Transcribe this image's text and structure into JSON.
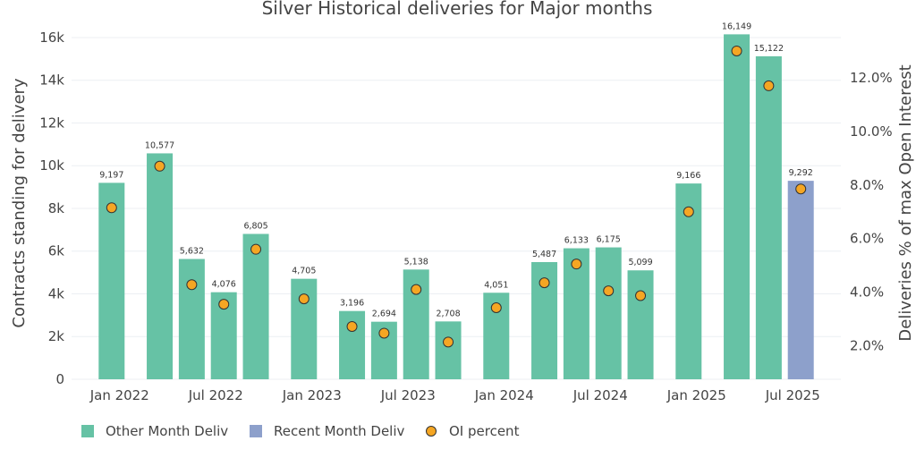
{
  "chart_data": {
    "type": "bar",
    "title": "Silver Historical deliveries for Major months",
    "ylabel": "Contracts standing for delivery",
    "y2label": "Deliveries % of max Open Interest",
    "ylim": [
      0,
      16500
    ],
    "y2lim": [
      0.75,
      13.9
    ],
    "yticks": [
      0,
      2000,
      4000,
      6000,
      8000,
      10000,
      12000,
      14000,
      16000
    ],
    "ytick_labels": [
      "0",
      "2k",
      "4k",
      "6k",
      "8k",
      "10k",
      "12k",
      "14k",
      "16k"
    ],
    "y2ticks": [
      2,
      4,
      6,
      8,
      10,
      12
    ],
    "y2tick_labels": [
      "2.0%",
      "4.0%",
      "6.0%",
      "8.0%",
      "10.0%",
      "12.0%"
    ],
    "xtick_labels": [
      {
        "label": "Jan 2022",
        "at": "2022-01"
      },
      {
        "label": "Jul 2022",
        "at": "2022-07"
      },
      {
        "label": "Jan 2023",
        "at": "2023-01"
      },
      {
        "label": "Jul 2023",
        "at": "2023-07"
      },
      {
        "label": "Jan 2024",
        "at": "2024-01"
      },
      {
        "label": "Jul 2024",
        "at": "2024-07"
      },
      {
        "label": "Jan 2025",
        "at": "2025-01"
      },
      {
        "label": "Jul 2025",
        "at": "2025-07"
      }
    ],
    "colors": {
      "other": "#66c2a5",
      "recent": "#8da0cb",
      "oi": "#f5a623",
      "oi_edge": "#333333"
    },
    "grid": true,
    "legend_position": "bottom",
    "bars": [
      {
        "month": "2021-12",
        "value": 9197,
        "label": "9,197",
        "oi": 7.15,
        "series": "Other Month Deliv"
      },
      {
        "month": "2022-03",
        "value": 10577,
        "label": "10,577",
        "oi": 8.7,
        "series": "Other Month Deliv"
      },
      {
        "month": "2022-05",
        "value": 5632,
        "label": "5,632",
        "oi": 4.28,
        "series": "Other Month Deliv"
      },
      {
        "month": "2022-07",
        "value": 4076,
        "label": "4,076",
        "oi": 3.55,
        "series": "Other Month Deliv"
      },
      {
        "month": "2022-09",
        "value": 6805,
        "label": "6,805",
        "oi": 5.6,
        "series": "Other Month Deliv"
      },
      {
        "month": "2022-12",
        "value": 4705,
        "label": "4,705",
        "oi": 3.75,
        "series": "Other Month Deliv"
      },
      {
        "month": "2023-03",
        "value": 3196,
        "label": "3,196",
        "oi": 2.72,
        "series": "Other Month Deliv"
      },
      {
        "month": "2023-05",
        "value": 2694,
        "label": "2,694",
        "oi": 2.47,
        "series": "Other Month Deliv"
      },
      {
        "month": "2023-07",
        "value": 5138,
        "label": "5,138",
        "oi": 4.1,
        "series": "Other Month Deliv"
      },
      {
        "month": "2023-09",
        "value": 2708,
        "label": "2,708",
        "oi": 2.14,
        "series": "Other Month Deliv"
      },
      {
        "month": "2023-12",
        "value": 4051,
        "label": "4,051",
        "oi": 3.42,
        "series": "Other Month Deliv"
      },
      {
        "month": "2024-03",
        "value": 5487,
        "label": "5,487",
        "oi": 4.35,
        "series": "Other Month Deliv"
      },
      {
        "month": "2024-05",
        "value": 6133,
        "label": "6,133",
        "oi": 5.05,
        "series": "Other Month Deliv"
      },
      {
        "month": "2024-07",
        "value": 6175,
        "label": "6,175",
        "oi": 4.05,
        "series": "Other Month Deliv"
      },
      {
        "month": "2024-09",
        "value": 5099,
        "label": "5,099",
        "oi": 3.87,
        "series": "Other Month Deliv"
      },
      {
        "month": "2024-12",
        "value": 9166,
        "label": "9,166",
        "oi": 7.0,
        "series": "Other Month Deliv"
      },
      {
        "month": "2025-03",
        "value": 16149,
        "label": "16,149",
        "oi": 13.0,
        "series": "Other Month Deliv"
      },
      {
        "month": "2025-05",
        "value": 15122,
        "label": "15,122",
        "oi": 11.7,
        "series": "Other Month Deliv"
      },
      {
        "month": "2025-07",
        "value": 9292,
        "label": "9,292",
        "oi": 7.85,
        "series": "Recent Month Deliv"
      }
    ],
    "legend": [
      {
        "label": "Other Month Deliv",
        "kind": "bar",
        "color_key": "other"
      },
      {
        "label": "Recent Month Deliv",
        "kind": "bar",
        "color_key": "recent"
      },
      {
        "label": "OI percent",
        "kind": "marker",
        "color_key": "oi"
      }
    ]
  }
}
